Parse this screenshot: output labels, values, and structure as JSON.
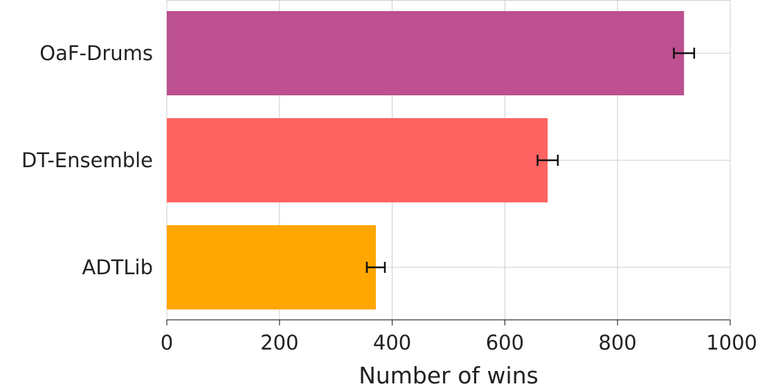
{
  "chart_data": {
    "type": "bar",
    "orientation": "horizontal",
    "categories": [
      "OaF-Drums",
      "DT-Ensemble",
      "ADTLib"
    ],
    "values": [
      918,
      676,
      371
    ],
    "errors": [
      18,
      18,
      16
    ],
    "colors": [
      "#bc5090",
      "#ff6361",
      "#ffa600"
    ],
    "xlabel": "Number of wins",
    "ylabel": "",
    "xlim": [
      0,
      1000
    ],
    "xticks": [
      0,
      200,
      400,
      600,
      800,
      1000
    ],
    "xtick_labels": [
      "0",
      "200",
      "400",
      "600",
      "800",
      "1000"
    ],
    "grid": true
  }
}
